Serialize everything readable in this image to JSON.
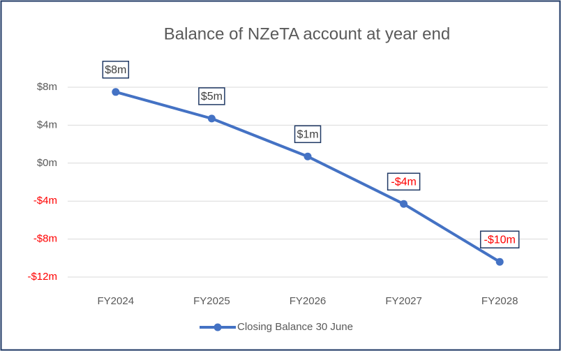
{
  "chart_data": {
    "type": "line",
    "title": "Balance of NZeTA account at year end",
    "categories": [
      "FY2024",
      "FY2025",
      "FY2026",
      "FY2027",
      "FY2028"
    ],
    "series": [
      {
        "name": "Closing Balance 30 June",
        "color": "#4472c4",
        "values": [
          7.5,
          4.7,
          0.7,
          -4.3,
          -10.4
        ],
        "value_labels": [
          "$8m",
          "$5m",
          "$1m",
          "-$4m",
          "-$10m"
        ]
      }
    ],
    "ylim": [
      -12,
      8
    ],
    "yticks": [
      {
        "value": -12,
        "label": "-$12m"
      },
      {
        "value": -8,
        "label": "-$8m"
      },
      {
        "value": -4,
        "label": "-$4m"
      },
      {
        "value": 0,
        "label": "$0m"
      },
      {
        "value": 4,
        "label": "$4m"
      },
      {
        "value": 8,
        "label": "$8m"
      }
    ],
    "grid": true,
    "legend": "bottom",
    "negative_color": "#ff0000"
  }
}
